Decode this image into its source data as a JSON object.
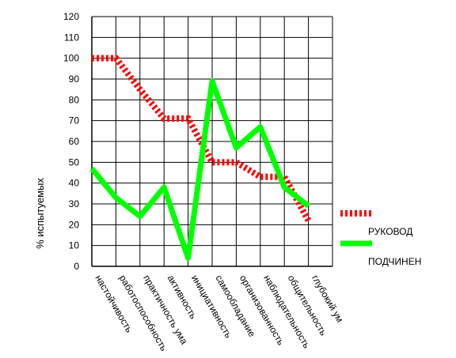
{
  "chart_data": {
    "type": "line",
    "ylabel": "% испытуемых",
    "xlabel": "",
    "title": "",
    "ylim": [
      0,
      120
    ],
    "ytick_step": 10,
    "grid": true,
    "legend_position": "right",
    "categories": [
      "настойчивость",
      "работоспособность",
      "практичность ума",
      "активность",
      "инициативность",
      "самообладание",
      "организованность",
      "наблюдательность",
      "общительность",
      "глубокий ум"
    ],
    "series": [
      {
        "name": "РУКОВОД",
        "color": "#ff0000",
        "style": "dashed-thick",
        "values": [
          100,
          100,
          85,
          71,
          71,
          50,
          50,
          43,
          43,
          22
        ]
      },
      {
        "name": "ПОДЧИНЕН",
        "color": "#00ff00",
        "style": "solid-thick",
        "values": [
          47,
          33,
          24,
          38,
          4,
          89,
          57,
          67,
          38,
          29
        ]
      }
    ]
  }
}
